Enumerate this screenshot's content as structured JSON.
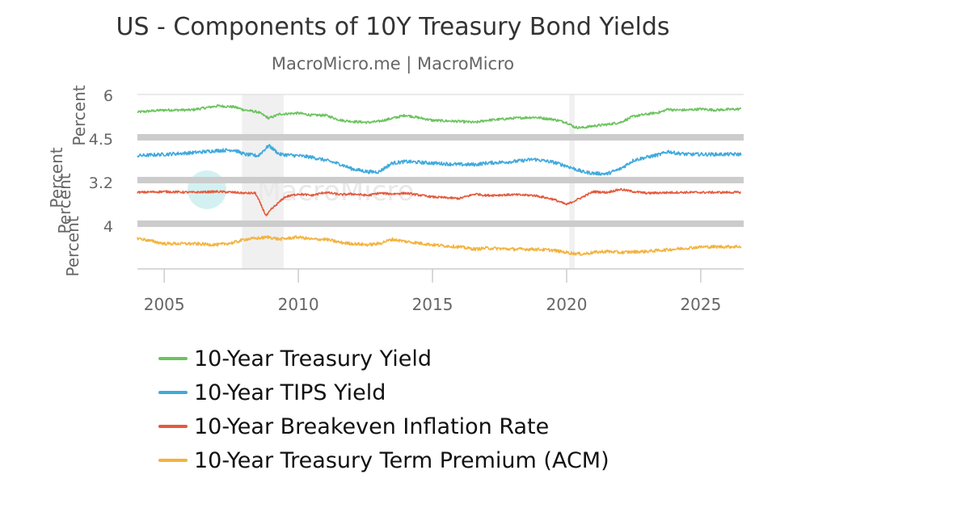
{
  "chart_data": {
    "type": "line",
    "title": "US - Components of 10Y Treasury Bond Yields",
    "subtitle": "MacroMicro.me | MacroMicro",
    "watermark": "MacroMicro",
    "x_range": [
      2004.0,
      2026.6
    ],
    "x_ticks": [
      "2005",
      "2010",
      "2015",
      "2020",
      "2025"
    ],
    "recession_shading": [
      [
        2007.9,
        2009.45
      ],
      [
        2020.1,
        2020.3
      ]
    ],
    "panels": [
      {
        "name": "10-Year Treasury Yield",
        "ylabel": "Percent",
        "tick_labels": [
          "6",
          "4.5"
        ],
        "color": "#6cc35f",
        "noise": 0.06,
        "x": [
          2004.0,
          2005.0,
          2006.0,
          2007.0,
          2007.6,
          2008.0,
          2008.5,
          2008.9,
          2009.3,
          2010.0,
          2010.5,
          2011.0,
          2011.6,
          2012.0,
          2012.6,
          2013.0,
          2013.5,
          2014.0,
          2015.0,
          2016.0,
          2016.6,
          2017.0,
          2018.0,
          2018.8,
          2019.5,
          2020.0,
          2020.3,
          2020.6,
          2021.0,
          2021.5,
          2022.0,
          2022.5,
          2023.0,
          2023.5,
          2023.8,
          2024.0,
          2024.5,
          2025.0,
          2025.5,
          2026.5
        ],
        "y": [
          5.45,
          5.55,
          5.55,
          5.75,
          5.7,
          5.55,
          5.45,
          5.15,
          5.35,
          5.4,
          5.3,
          5.3,
          5.05,
          5.0,
          4.95,
          5.0,
          5.15,
          5.3,
          5.05,
          5.0,
          4.95,
          5.05,
          5.15,
          5.2,
          5.1,
          4.95,
          4.72,
          4.7,
          4.78,
          4.85,
          4.95,
          5.25,
          5.35,
          5.45,
          5.6,
          5.55,
          5.55,
          5.6,
          5.55,
          5.6
        ],
        "ylim": [
          4.35,
          6.3
        ]
      },
      {
        "name": "10-Year TIPS Yield",
        "ylabel": "Percent",
        "tick_labels": [
          "3.2"
        ],
        "color": "#3fa9dd",
        "noise": 0.06,
        "x": [
          2004.0,
          2005.0,
          2006.0,
          2007.0,
          2007.6,
          2008.0,
          2008.5,
          2008.9,
          2009.3,
          2010.0,
          2010.5,
          2011.0,
          2011.6,
          2012.0,
          2012.6,
          2013.0,
          2013.5,
          2014.0,
          2015.0,
          2016.0,
          2016.6,
          2017.0,
          2018.0,
          2018.8,
          2019.5,
          2020.0,
          2020.3,
          2020.6,
          2021.0,
          2021.5,
          2022.0,
          2022.5,
          2023.0,
          2023.5,
          2023.8,
          2024.0,
          2024.5,
          2025.0,
          2025.5,
          2026.5
        ],
        "y": [
          4.0,
          4.05,
          4.1,
          4.18,
          4.2,
          4.05,
          4.0,
          4.35,
          4.05,
          4.0,
          3.95,
          3.85,
          3.7,
          3.55,
          3.45,
          3.45,
          3.75,
          3.8,
          3.75,
          3.7,
          3.7,
          3.75,
          3.8,
          3.88,
          3.78,
          3.65,
          3.55,
          3.45,
          3.4,
          3.38,
          3.55,
          3.85,
          3.95,
          4.05,
          4.15,
          4.1,
          4.05,
          4.05,
          4.05,
          4.05
        ],
        "ylim": [
          3.25,
          4.55
        ]
      },
      {
        "name": "10-Year Breakeven Inflation Rate",
        "ylabel": "Percent",
        "tick_labels": [
          "4"
        ],
        "color": "#e55a3c",
        "noise": 0.07,
        "x": [
          2004.0,
          2005.0,
          2006.0,
          2007.0,
          2007.6,
          2008.0,
          2008.4,
          2008.8,
          2009.0,
          2009.5,
          2010.0,
          2010.5,
          2011.0,
          2011.6,
          2012.0,
          2012.6,
          2013.0,
          2013.5,
          2014.0,
          2015.0,
          2016.0,
          2016.6,
          2017.0,
          2018.0,
          2018.8,
          2019.5,
          2020.0,
          2020.3,
          2020.6,
          2021.0,
          2021.5,
          2022.0,
          2022.5,
          2023.0,
          2024.0,
          2025.0,
          2026.5
        ],
        "y": [
          0.0,
          0.05,
          0.0,
          0.05,
          0.0,
          -0.05,
          -0.05,
          -1.55,
          -1.1,
          -0.3,
          -0.1,
          -0.2,
          0.0,
          -0.15,
          -0.1,
          -0.2,
          -0.05,
          -0.1,
          -0.05,
          -0.3,
          -0.4,
          -0.1,
          -0.2,
          -0.15,
          -0.2,
          -0.45,
          -0.8,
          -0.55,
          -0.3,
          0.05,
          0.0,
          0.2,
          0.05,
          -0.05,
          0.0,
          0.0,
          0.0
        ],
        "ylim": [
          -1.9,
          0.65
        ]
      },
      {
        "name": "10-Year Treasury Term Premium (ACM)",
        "ylabel": "Percent",
        "tick_labels": [],
        "color": "#f3b33f",
        "noise": 0.07,
        "x": [
          2004.0,
          2005.0,
          2006.0,
          2007.0,
          2007.6,
          2008.0,
          2008.5,
          2008.9,
          2009.3,
          2010.0,
          2010.5,
          2011.0,
          2011.6,
          2012.0,
          2012.6,
          2013.0,
          2013.5,
          2014.0,
          2015.0,
          2016.0,
          2016.6,
          2017.0,
          2018.0,
          2018.8,
          2019.5,
          2020.0,
          2020.3,
          2020.6,
          2021.0,
          2021.5,
          2022.0,
          2022.5,
          2023.0,
          2023.5,
          2024.0,
          2025.0,
          2026.5
        ],
        "y": [
          4.0,
          3.75,
          3.75,
          3.7,
          3.8,
          3.95,
          4.0,
          4.05,
          3.95,
          4.05,
          3.95,
          3.95,
          3.8,
          3.75,
          3.7,
          3.75,
          3.95,
          3.85,
          3.7,
          3.6,
          3.5,
          3.55,
          3.5,
          3.5,
          3.45,
          3.35,
          3.3,
          3.28,
          3.35,
          3.4,
          3.35,
          3.38,
          3.4,
          3.45,
          3.5,
          3.6,
          3.62
        ],
        "ylim": [
          2.6,
          4.55
        ]
      }
    ],
    "legend": {
      "placement": "bottom-left",
      "items": [
        "10-Year Treasury Yield",
        "10-Year TIPS Yield",
        "10-Year Breakeven Inflation Rate",
        "10-Year Treasury Term Premium (ACM)"
      ]
    }
  }
}
